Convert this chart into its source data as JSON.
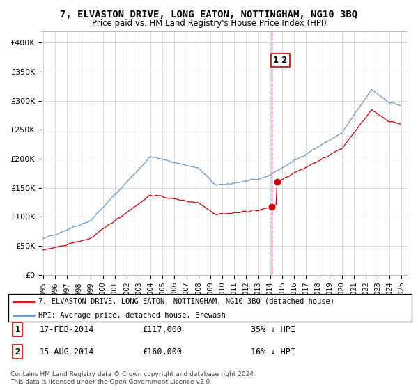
{
  "title": "7, ELVASTON DRIVE, LONG EATON, NOTTINGHAM, NG10 3BQ",
  "subtitle": "Price paid vs. HM Land Registry's House Price Index (HPI)",
  "ylabel_ticks": [
    "£0",
    "£50K",
    "£100K",
    "£150K",
    "£200K",
    "£250K",
    "£300K",
    "£350K",
    "£400K"
  ],
  "ytick_values": [
    0,
    50000,
    100000,
    150000,
    200000,
    250000,
    300000,
    350000,
    400000
  ],
  "ylim": [
    0,
    420000
  ],
  "xlim_start": 1994.9,
  "xlim_end": 2025.5,
  "legend_property": "7, ELVASTON DRIVE, LONG EATON, NOTTINGHAM, NG10 3BQ (detached house)",
  "legend_hpi": "HPI: Average price, detached house, Erewash",
  "transaction1_date": "17-FEB-2014",
  "transaction1_price": "£117,000",
  "transaction1_note": "35% ↓ HPI",
  "transaction1_x": 2014.12,
  "transaction1_y": 117000,
  "transaction2_date": "15-AUG-2014",
  "transaction2_price": "£160,000",
  "transaction2_note": "16% ↓ HPI",
  "transaction2_x": 2014.62,
  "transaction2_y": 160000,
  "vline_x": 2014.12,
  "property_color": "#cc0000",
  "hpi_color": "#6699cc",
  "vline_color": "#cc0000",
  "background_color": "#ffffff",
  "grid_color": "#cccccc",
  "copyright_text": "Contains HM Land Registry data © Crown copyright and database right 2024.\nThis data is licensed under the Open Government Licence v3.0."
}
